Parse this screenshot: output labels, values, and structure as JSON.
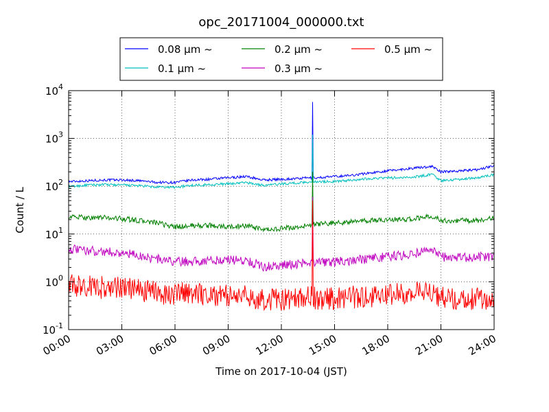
{
  "chart_data": {
    "type": "line",
    "title": "opc_20171004_000000.txt",
    "xlabel": "Time on 2017-10-04 (JST)",
    "ylabel": "Count / L",
    "yscale": "log",
    "xlim": [
      "00:00",
      "24:00"
    ],
    "ylim": [
      0.1,
      10000
    ],
    "grid": true,
    "legend_position": "top",
    "x_ticks": [
      "00:00",
      "03:00",
      "06:00",
      "09:00",
      "12:00",
      "15:00",
      "18:00",
      "21:00",
      "24:00"
    ],
    "y_ticks": [
      {
        "base": "10",
        "exp": "-1",
        "value": 0.1
      },
      {
        "base": "10",
        "exp": "0",
        "value": 1
      },
      {
        "base": "10",
        "exp": "1",
        "value": 10
      },
      {
        "base": "10",
        "exp": "2",
        "value": 100
      },
      {
        "base": "10",
        "exp": "3",
        "value": 1000
      },
      {
        "base": "10",
        "exp": "4",
        "value": 10000
      }
    ],
    "x": [
      "00:00",
      "01:00",
      "02:00",
      "03:00",
      "04:00",
      "05:00",
      "06:00",
      "07:00",
      "08:00",
      "09:00",
      "10:00",
      "11:00",
      "12:00",
      "13:00",
      "13:30",
      "14:00",
      "15:00",
      "16:00",
      "17:00",
      "18:00",
      "19:00",
      "20:00",
      "20:30",
      "21:00",
      "22:00",
      "23:00",
      "24:00"
    ],
    "series": [
      {
        "name": "0.08 μm ~",
        "color": "#0000ff",
        "values": [
          125,
          130,
          135,
          135,
          130,
          120,
          120,
          135,
          140,
          150,
          160,
          135,
          140,
          145,
          150,
          150,
          160,
          170,
          190,
          210,
          230,
          250,
          260,
          200,
          210,
          220,
          270
        ]
      },
      {
        "name": "0.1 μm ~",
        "color": "#00bfbf",
        "values": [
          98,
          105,
          108,
          106,
          102,
          95,
          95,
          105,
          108,
          112,
          120,
          104,
          112,
          118,
          122,
          125,
          125,
          135,
          145,
          150,
          150,
          165,
          180,
          130,
          140,
          150,
          175
        ]
      },
      {
        "name": "0.2 μm ~",
        "color": "#008000",
        "values": [
          23,
          22,
          22,
          21,
          19,
          17,
          14,
          15,
          15,
          14,
          15,
          12,
          13,
          14,
          15,
          16,
          17,
          18,
          19,
          20,
          20,
          22,
          24,
          19,
          19,
          19,
          22
        ]
      },
      {
        "name": "0.3 μm ~",
        "color": "#bf00bf",
        "values": [
          4.8,
          4.5,
          4.3,
          4.0,
          3.5,
          3.0,
          2.6,
          2.7,
          2.8,
          2.9,
          2.8,
          2.1,
          2.2,
          2.4,
          2.6,
          2.5,
          2.6,
          2.8,
          3.0,
          3.4,
          3.6,
          4.2,
          4.6,
          3.3,
          3.2,
          3.3,
          3.4
        ]
      },
      {
        "name": "0.5 μm ~",
        "color": "#ff0000",
        "values": [
          0.85,
          0.8,
          0.75,
          0.75,
          0.65,
          0.6,
          0.55,
          0.6,
          0.55,
          0.5,
          0.5,
          0.42,
          0.42,
          0.45,
          0.48,
          0.45,
          0.45,
          0.48,
          0.5,
          0.55,
          0.58,
          0.6,
          0.6,
          0.48,
          0.45,
          0.45,
          0.45
        ]
      }
    ],
    "spike": {
      "x": "13:45",
      "values": [
        5800,
        1200,
        200,
        60,
        50
      ]
    }
  }
}
